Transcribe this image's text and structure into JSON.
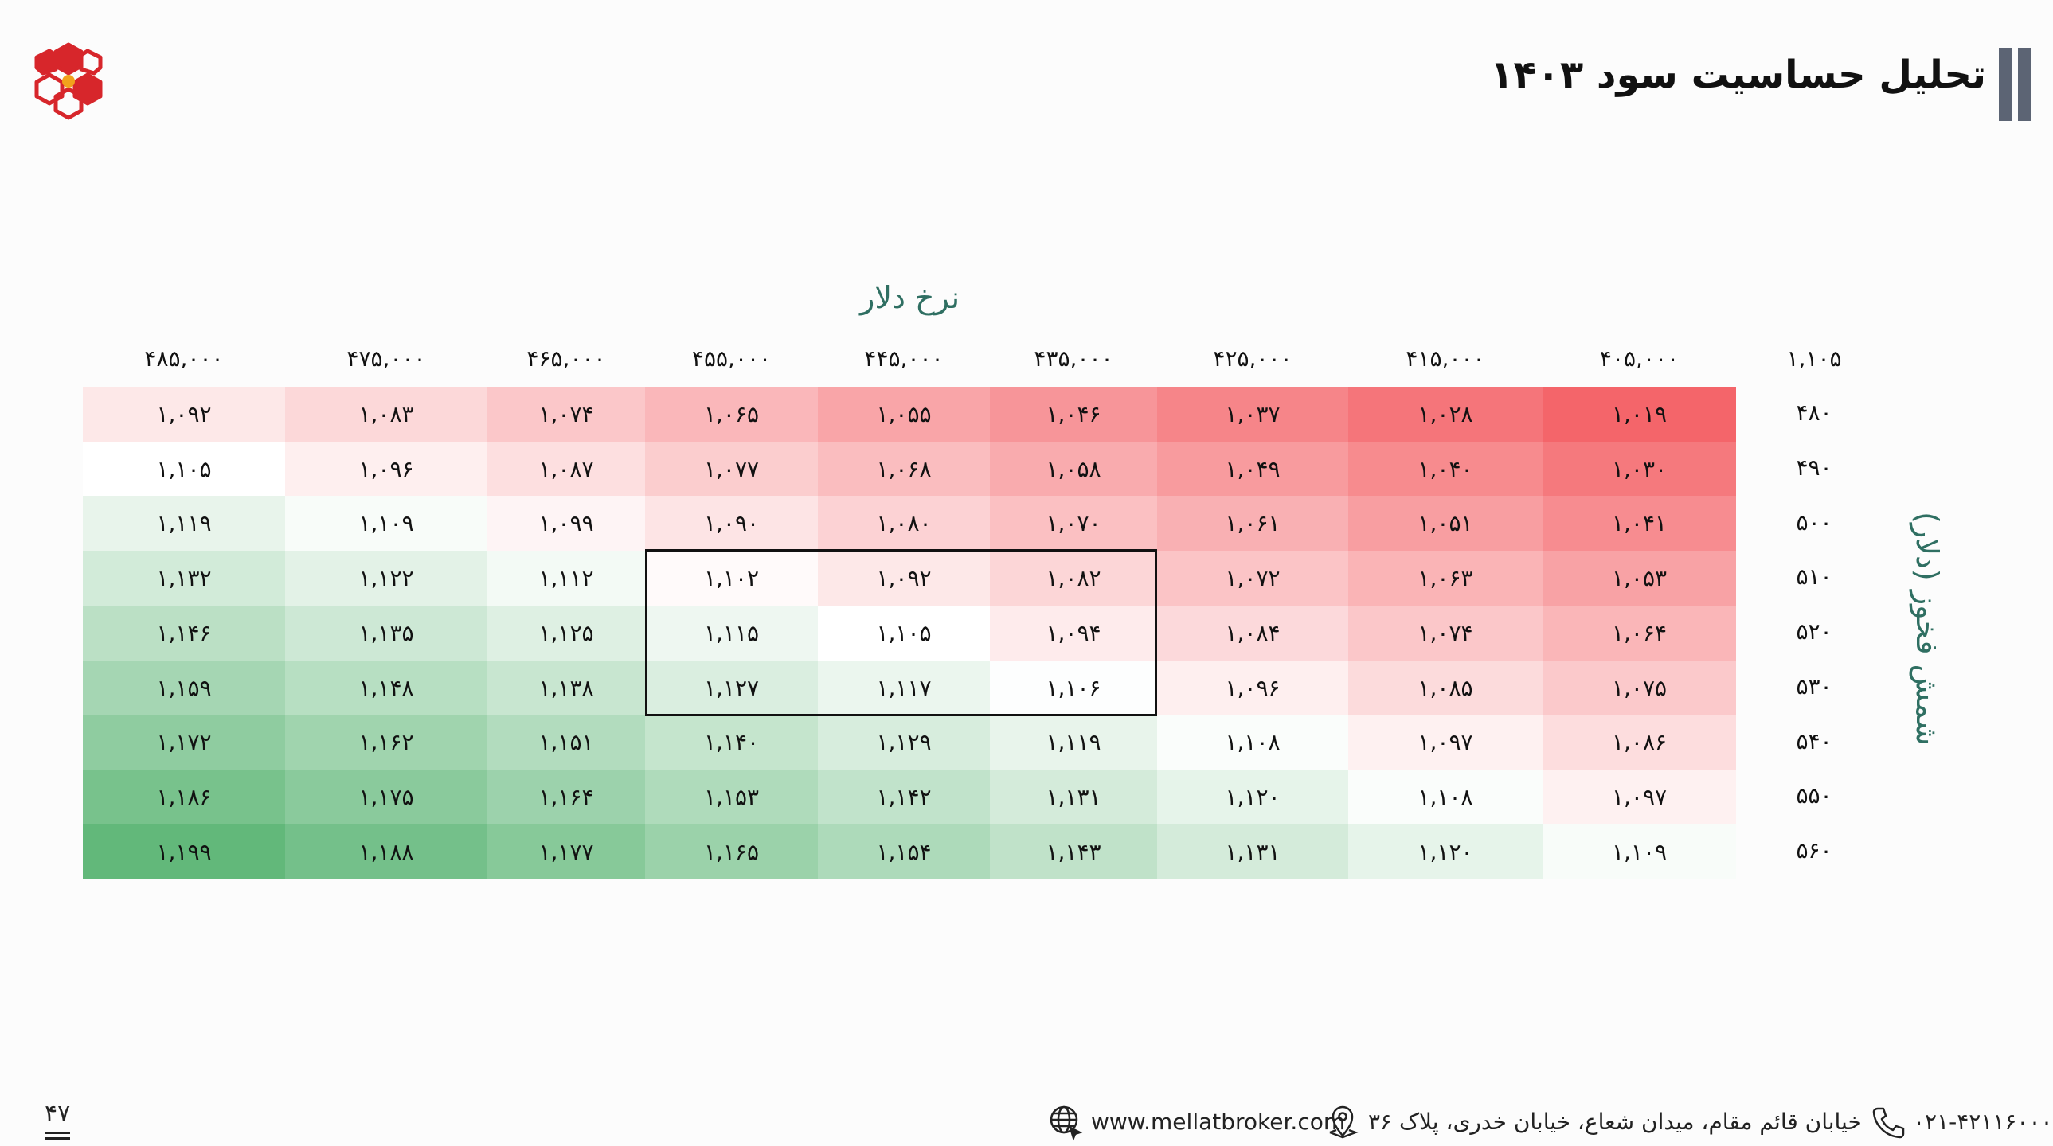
{
  "header": {
    "title": "تحلیل حساسیت سود ۱۴۰۳"
  },
  "table": {
    "x_title": "نرخ دلار",
    "y_title": "شمش فخوز (دلار)",
    "corner": "۱,۱۰۵",
    "columns": [
      "۴۸۵,۰۰۰",
      "۴۷۵,۰۰۰",
      "۴۶۵,۰۰۰",
      "۴۵۵,۰۰۰",
      "۴۴۵,۰۰۰",
      "۴۳۵,۰۰۰",
      "۴۲۵,۰۰۰",
      "۴۱۵,۰۰۰",
      "۴۰۵,۰۰۰"
    ],
    "rows": [
      {
        "label": "۴۸۰",
        "values": [
          "۱,۰۹۲",
          "۱,۰۸۳",
          "۱,۰۷۴",
          "۱,۰۶۵",
          "۱,۰۵۵",
          "۱,۰۴۶",
          "۱,۰۳۷",
          "۱,۰۲۸",
          "۱,۰۱۹"
        ]
      },
      {
        "label": "۴۹۰",
        "values": [
          "۱,۱۰۵",
          "۱,۰۹۶",
          "۱,۰۸۷",
          "۱,۰۷۷",
          "۱,۰۶۸",
          "۱,۰۵۸",
          "۱,۰۴۹",
          "۱,۰۴۰",
          "۱,۰۳۰"
        ]
      },
      {
        "label": "۵۰۰",
        "values": [
          "۱,۱۱۹",
          "۱,۱۰۹",
          "۱,۰۹۹",
          "۱,۰۹۰",
          "۱,۰۸۰",
          "۱,۰۷۰",
          "۱,۰۶۱",
          "۱,۰۵۱",
          "۱,۰۴۱"
        ]
      },
      {
        "label": "۵۱۰",
        "values": [
          "۱,۱۳۲",
          "۱,۱۲۲",
          "۱,۱۱۲",
          "۱,۱۰۲",
          "۱,۰۹۲",
          "۱,۰۸۲",
          "۱,۰۷۲",
          "۱,۰۶۳",
          "۱,۰۵۳"
        ]
      },
      {
        "label": "۵۲۰",
        "values": [
          "۱,۱۴۶",
          "۱,۱۳۵",
          "۱,۱۲۵",
          "۱,۱۱۵",
          "۱,۱۰۵",
          "۱,۰۹۴",
          "۱,۰۸۴",
          "۱,۰۷۴",
          "۱,۰۶۴"
        ]
      },
      {
        "label": "۵۳۰",
        "values": [
          "۱,۱۵۹",
          "۱,۱۴۸",
          "۱,۱۳۸",
          "۱,۱۲۷",
          "۱,۱۱۷",
          "۱,۱۰۶",
          "۱,۰۹۶",
          "۱,۰۸۵",
          "۱,۰۷۵"
        ]
      },
      {
        "label": "۵۴۰",
        "values": [
          "۱,۱۷۲",
          "۱,۱۶۲",
          "۱,۱۵۱",
          "۱,۱۴۰",
          "۱,۱۲۹",
          "۱,۱۱۹",
          "۱,۱۰۸",
          "۱,۰۹۷",
          "۱,۰۸۶"
        ]
      },
      {
        "label": "۵۵۰",
        "values": [
          "۱,۱۸۶",
          "۱,۱۷۵",
          "۱,۱۶۴",
          "۱,۱۵۳",
          "۱,۱۴۲",
          "۱,۱۳۱",
          "۱,۱۲۰",
          "۱,۱۰۸",
          "۱,۰۹۷"
        ]
      },
      {
        "label": "۵۶۰",
        "values": [
          "۱,۱۹۹",
          "۱,۱۸۸",
          "۱,۱۷۷",
          "۱,۱۶۵",
          "۱,۱۵۴",
          "۱,۱۴۳",
          "۱,۱۳۱",
          "۱,۱۲۰",
          "۱,۱۰۹"
        ]
      }
    ],
    "numeric_values": [
      [
        1092,
        1083,
        1074,
        1065,
        1055,
        1046,
        1037,
        1028,
        1019
      ],
      [
        1105,
        1096,
        1087,
        1077,
        1068,
        1058,
        1049,
        1040,
        1030
      ],
      [
        1119,
        1109,
        1099,
        1090,
        1080,
        1070,
        1061,
        1051,
        1041
      ],
      [
        1132,
        1122,
        1112,
        1102,
        1092,
        1082,
        1072,
        1063,
        1053
      ],
      [
        1146,
        1135,
        1125,
        1115,
        1105,
        1094,
        1084,
        1074,
        1064
      ],
      [
        1159,
        1148,
        1138,
        1127,
        1117,
        1106,
        1096,
        1085,
        1075
      ],
      [
        1172,
        1162,
        1151,
        1140,
        1129,
        1119,
        1108,
        1097,
        1086
      ],
      [
        1186,
        1175,
        1164,
        1153,
        1142,
        1131,
        1120,
        1108,
        1097
      ],
      [
        1199,
        1188,
        1177,
        1165,
        1154,
        1143,
        1131,
        1120,
        1109
      ]
    ],
    "base_value": 1105,
    "colors": {
      "low": "#f4656a",
      "mid": "#ffffff",
      "high": "#62b87a"
    }
  },
  "footer": {
    "phone": "۰۲۱-۴۲۱۱۶۰۰۰",
    "address": "خیابان قائم مقام، میدان شعاع، خیابان خدری، پلاک ۳۶",
    "website": "www.mellatbroker.com",
    "page_number": "۴۷"
  },
  "icons": [
    "company-logo-icon",
    "phone-icon",
    "location-pin-icon",
    "globe-icon"
  ]
}
